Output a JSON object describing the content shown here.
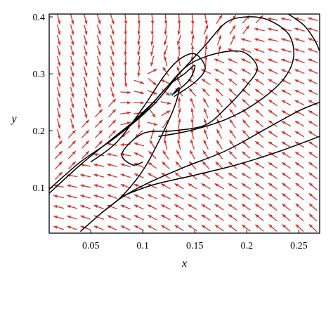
{
  "chart_data": {
    "type": "vector_field_phase_portrait",
    "xlabel": "x",
    "ylabel": "y",
    "xlim": [
      0.01,
      0.27
    ],
    "ylim": [
      0.02,
      0.405
    ],
    "x_ticks": [
      {
        "value": 0.05,
        "label": "0.05"
      },
      {
        "value": 0.1,
        "label": "0.1"
      },
      {
        "value": 0.15,
        "label": "0.15"
      },
      {
        "value": 0.2,
        "label": "0.2"
      },
      {
        "value": 0.25,
        "label": "0.25"
      }
    ],
    "y_ticks": [
      {
        "value": 0.1,
        "label": "0.1"
      },
      {
        "value": 0.2,
        "label": "0.2"
      },
      {
        "value": 0.3,
        "label": "0.3"
      },
      {
        "value": 0.4,
        "label": "0.4"
      }
    ],
    "arrow_color": "#d9312b",
    "curve_color": "#000000",
    "equilibrium_color": "#3fb6c9",
    "equilibrium": {
      "x": 0.127,
      "y": 0.265
    },
    "trajectories": [
      {
        "points": [
          [
            0.04,
            0.023
          ],
          [
            0.06,
            0.055
          ],
          [
            0.08,
            0.085
          ],
          [
            0.1,
            0.13
          ],
          [
            0.115,
            0.18
          ],
          [
            0.13,
            0.24
          ],
          [
            0.135,
            0.275
          ],
          [
            0.128,
            0.262
          ]
        ]
      },
      {
        "points": [
          [
            0.06,
            0.055
          ],
          [
            0.08,
            0.083
          ],
          [
            0.105,
            0.108
          ],
          [
            0.14,
            0.136
          ],
          [
            0.18,
            0.165
          ],
          [
            0.22,
            0.205
          ],
          [
            0.25,
            0.235
          ],
          [
            0.27,
            0.25
          ]
        ]
      },
      {
        "points": [
          [
            0.08,
            0.085
          ],
          [
            0.11,
            0.105
          ],
          [
            0.15,
            0.122
          ],
          [
            0.19,
            0.14
          ],
          [
            0.23,
            0.163
          ],
          [
            0.27,
            0.19
          ]
        ]
      },
      {
        "points": [
          [
            0.01,
            0.09
          ],
          [
            0.04,
            0.14
          ],
          [
            0.07,
            0.185
          ],
          [
            0.1,
            0.23
          ],
          [
            0.12,
            0.27
          ],
          [
            0.14,
            0.31
          ],
          [
            0.16,
            0.33
          ],
          [
            0.185,
            0.34
          ],
          [
            0.2,
            0.335
          ],
          [
            0.21,
            0.31
          ],
          [
            0.2,
            0.28
          ],
          [
            0.18,
            0.24
          ],
          [
            0.16,
            0.21
          ],
          [
            0.13,
            0.2
          ],
          [
            0.1,
            0.195
          ],
          [
            0.08,
            0.16
          ],
          [
            0.09,
            0.14
          ],
          [
            0.1,
            0.145
          ]
        ]
      },
      {
        "points": [
          [
            0.01,
            0.097
          ],
          [
            0.04,
            0.145
          ],
          [
            0.075,
            0.19
          ],
          [
            0.11,
            0.245
          ],
          [
            0.135,
            0.3
          ],
          [
            0.16,
            0.35
          ],
          [
            0.18,
            0.39
          ],
          [
            0.2,
            0.4
          ],
          [
            0.22,
            0.395
          ],
          [
            0.24,
            0.37
          ],
          [
            0.245,
            0.33
          ],
          [
            0.235,
            0.29
          ],
          [
            0.21,
            0.25
          ],
          [
            0.18,
            0.22
          ],
          [
            0.145,
            0.2
          ],
          [
            0.115,
            0.19
          ]
        ]
      },
      {
        "points": [
          [
            0.05,
            0.145
          ],
          [
            0.075,
            0.18
          ],
          [
            0.1,
            0.24
          ],
          [
            0.12,
            0.295
          ],
          [
            0.135,
            0.325
          ],
          [
            0.15,
            0.335
          ],
          [
            0.16,
            0.31
          ],
          [
            0.15,
            0.285
          ],
          [
            0.13,
            0.26
          ]
        ]
      },
      {
        "points": [
          [
            0.09,
            0.215
          ],
          [
            0.11,
            0.25
          ],
          [
            0.125,
            0.28
          ],
          [
            0.14,
            0.3
          ],
          [
            0.15,
            0.315
          ],
          [
            0.145,
            0.29
          ],
          [
            0.13,
            0.265
          ]
        ]
      },
      {
        "points": [
          [
            0.24,
            0.405
          ],
          [
            0.255,
            0.385
          ],
          [
            0.265,
            0.36
          ],
          [
            0.27,
            0.34
          ]
        ]
      }
    ]
  }
}
